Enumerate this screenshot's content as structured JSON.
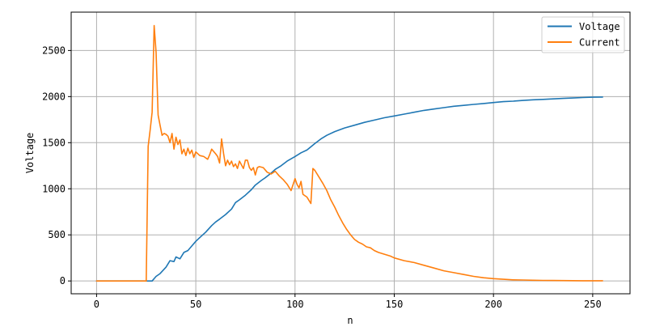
{
  "chart_data": {
    "type": "line",
    "title": "",
    "xlabel": "n",
    "ylabel": "Voltage",
    "xlim": [
      -12.8,
      268.8
    ],
    "ylim": [
      -139,
      2916
    ],
    "xticks": [
      0,
      50,
      100,
      150,
      200,
      250
    ],
    "yticks": [
      0,
      500,
      1000,
      1500,
      2000,
      2500
    ],
    "grid": true,
    "legend_position": "top-right",
    "series": [
      {
        "name": "Voltage",
        "color": "#1f77b4",
        "points": [
          [
            0,
            0
          ],
          [
            25,
            0
          ],
          [
            28,
            0
          ],
          [
            30,
            50
          ],
          [
            32,
            80
          ],
          [
            35,
            150
          ],
          [
            37,
            220
          ],
          [
            39,
            210
          ],
          [
            40,
            260
          ],
          [
            42,
            240
          ],
          [
            44,
            310
          ],
          [
            46,
            330
          ],
          [
            48,
            380
          ],
          [
            50,
            430
          ],
          [
            52,
            470
          ],
          [
            55,
            530
          ],
          [
            58,
            600
          ],
          [
            60,
            640
          ],
          [
            62,
            670
          ],
          [
            65,
            720
          ],
          [
            68,
            780
          ],
          [
            70,
            850
          ],
          [
            72,
            880
          ],
          [
            75,
            930
          ],
          [
            78,
            990
          ],
          [
            80,
            1040
          ],
          [
            83,
            1090
          ],
          [
            85,
            1120
          ],
          [
            88,
            1170
          ],
          [
            90,
            1210
          ],
          [
            93,
            1250
          ],
          [
            96,
            1300
          ],
          [
            100,
            1350
          ],
          [
            103,
            1390
          ],
          [
            106,
            1420
          ],
          [
            110,
            1490
          ],
          [
            113,
            1540
          ],
          [
            116,
            1580
          ],
          [
            120,
            1620
          ],
          [
            125,
            1660
          ],
          [
            130,
            1690
          ],
          [
            135,
            1720
          ],
          [
            140,
            1745
          ],
          [
            145,
            1770
          ],
          [
            150,
            1790
          ],
          [
            155,
            1810
          ],
          [
            160,
            1830
          ],
          [
            165,
            1850
          ],
          [
            170,
            1865
          ],
          [
            175,
            1880
          ],
          [
            180,
            1895
          ],
          [
            185,
            1905
          ],
          [
            190,
            1915
          ],
          [
            195,
            1925
          ],
          [
            200,
            1935
          ],
          [
            205,
            1945
          ],
          [
            210,
            1950
          ],
          [
            215,
            1958
          ],
          [
            220,
            1965
          ],
          [
            225,
            1970
          ],
          [
            230,
            1975
          ],
          [
            235,
            1980
          ],
          [
            240,
            1985
          ],
          [
            245,
            1990
          ],
          [
            250,
            1993
          ],
          [
            255,
            1995
          ]
        ]
      },
      {
        "name": "Current",
        "color": "#ff7f0e",
        "points": [
          [
            0,
            0
          ],
          [
            24,
            0
          ],
          [
            25,
            0
          ],
          [
            26,
            1460
          ],
          [
            27,
            1640
          ],
          [
            28,
            1830
          ],
          [
            29,
            2770
          ],
          [
            30,
            2480
          ],
          [
            31,
            1800
          ],
          [
            32,
            1690
          ],
          [
            33,
            1580
          ],
          [
            34,
            1600
          ],
          [
            35,
            1590
          ],
          [
            36,
            1570
          ],
          [
            37,
            1500
          ],
          [
            38,
            1600
          ],
          [
            39,
            1430
          ],
          [
            40,
            1560
          ],
          [
            41,
            1480
          ],
          [
            42,
            1530
          ],
          [
            43,
            1380
          ],
          [
            44,
            1430
          ],
          [
            45,
            1360
          ],
          [
            46,
            1440
          ],
          [
            47,
            1380
          ],
          [
            48,
            1420
          ],
          [
            49,
            1340
          ],
          [
            50,
            1400
          ],
          [
            52,
            1360
          ],
          [
            54,
            1350
          ],
          [
            56,
            1320
          ],
          [
            57,
            1370
          ],
          [
            58,
            1430
          ],
          [
            60,
            1380
          ],
          [
            61,
            1350
          ],
          [
            62,
            1280
          ],
          [
            63,
            1540
          ],
          [
            64,
            1380
          ],
          [
            65,
            1250
          ],
          [
            66,
            1310
          ],
          [
            67,
            1260
          ],
          [
            68,
            1300
          ],
          [
            69,
            1240
          ],
          [
            70,
            1270
          ],
          [
            71,
            1220
          ],
          [
            72,
            1300
          ],
          [
            73,
            1260
          ],
          [
            74,
            1220
          ],
          [
            75,
            1310
          ],
          [
            76,
            1310
          ],
          [
            77,
            1230
          ],
          [
            78,
            1200
          ],
          [
            79,
            1230
          ],
          [
            80,
            1150
          ],
          [
            81,
            1230
          ],
          [
            82,
            1240
          ],
          [
            84,
            1230
          ],
          [
            86,
            1180
          ],
          [
            88,
            1160
          ],
          [
            90,
            1190
          ],
          [
            92,
            1140
          ],
          [
            94,
            1100
          ],
          [
            96,
            1050
          ],
          [
            98,
            980
          ],
          [
            100,
            1110
          ],
          [
            101,
            1050
          ],
          [
            102,
            1010
          ],
          [
            103,
            1080
          ],
          [
            104,
            940
          ],
          [
            106,
            910
          ],
          [
            108,
            840
          ],
          [
            109,
            1220
          ],
          [
            110,
            1200
          ],
          [
            112,
            1130
          ],
          [
            114,
            1060
          ],
          [
            116,
            980
          ],
          [
            118,
            880
          ],
          [
            120,
            800
          ],
          [
            122,
            710
          ],
          [
            124,
            630
          ],
          [
            126,
            560
          ],
          [
            128,
            500
          ],
          [
            130,
            450
          ],
          [
            132,
            420
          ],
          [
            134,
            400
          ],
          [
            136,
            370
          ],
          [
            138,
            360
          ],
          [
            140,
            330
          ],
          [
            142,
            310
          ],
          [
            145,
            290
          ],
          [
            148,
            270
          ],
          [
            150,
            250
          ],
          [
            155,
            220
          ],
          [
            160,
            200
          ],
          [
            165,
            170
          ],
          [
            170,
            140
          ],
          [
            175,
            110
          ],
          [
            180,
            90
          ],
          [
            185,
            70
          ],
          [
            190,
            50
          ],
          [
            195,
            35
          ],
          [
            200,
            25
          ],
          [
            205,
            18
          ],
          [
            210,
            12
          ],
          [
            215,
            10
          ],
          [
            220,
            8
          ],
          [
            225,
            6
          ],
          [
            230,
            5
          ],
          [
            235,
            4
          ],
          [
            240,
            3
          ],
          [
            245,
            2
          ],
          [
            250,
            2
          ],
          [
            255,
            2
          ]
        ]
      }
    ]
  }
}
